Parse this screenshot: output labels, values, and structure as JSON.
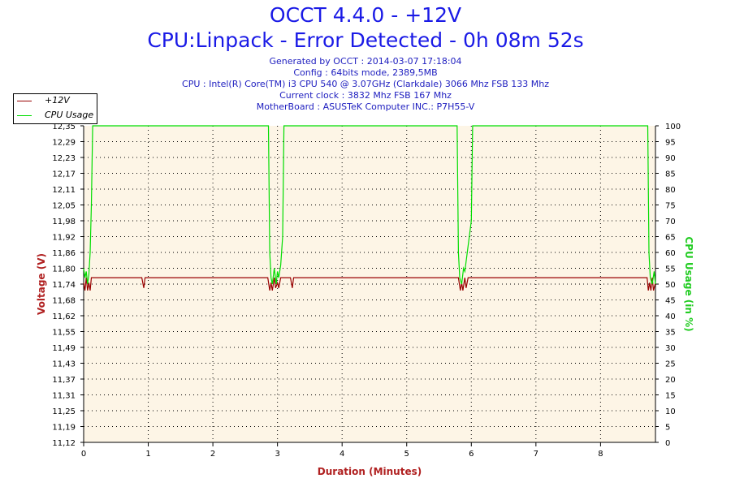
{
  "titles": {
    "line1": "OCCT 4.4.0 - +12V",
    "line2": "CPU:Linpack - Error Detected - 0h 08m 52s"
  },
  "info": {
    "generated": "Generated by OCCT : 2014-03-07 17:18:04",
    "config": "Config : 64bits mode, 2389,5MB",
    "cpu": "CPU : Intel(R) Core(TM) i3 CPU 540 @ 3.07GHz (Clarkdale) 3066 Mhz FSB 133 Mhz",
    "clock": "Current clock : 3832 Mhz FSB 167 Mhz",
    "motherboard": "MotherBoard : ASUSTeK Computer INC.: P7H55-V"
  },
  "legend": {
    "v12": "+12V",
    "cpu": "CPU Usage"
  },
  "colors": {
    "plot_bg": "#fdf5e6",
    "voltage": "#990000",
    "cpu": "#00dd00",
    "left_axis": "#b02020",
    "right_axis": "#22cc22",
    "x_axis_title": "#b02020"
  },
  "chart_data": {
    "type": "line",
    "xlabel": "Duration (Minutes)",
    "ylabel": "Voltage (V)",
    "y2label": "CPU Usage (in %)",
    "xlim": [
      0,
      8.85
    ],
    "ylim": [
      11.12,
      12.35
    ],
    "y2lim": [
      0,
      100
    ],
    "x_ticks": [
      "0",
      "1",
      "2",
      "3",
      "4",
      "5",
      "6",
      "7",
      "8"
    ],
    "y_ticks": [
      "12,35",
      "12,29",
      "12,23",
      "12,17",
      "12,11",
      "12,05",
      "11,98",
      "11,92",
      "11,86",
      "11,80",
      "11,74",
      "11,68",
      "11,62",
      "11,55",
      "11,49",
      "11,43",
      "11,37",
      "11,31",
      "11,25",
      "11,19",
      "11,12"
    ],
    "y2_ticks": [
      "100",
      "95",
      "90",
      "85",
      "80",
      "75",
      "70",
      "65",
      "60",
      "55",
      "50",
      "45",
      "40",
      "35",
      "30",
      "25",
      "20",
      "15",
      "10",
      "5",
      "0"
    ],
    "grid": true,
    "legend_position": "top-left",
    "series": [
      {
        "name": "+12V",
        "axis": "left",
        "x": [
          0,
          0.02,
          0.04,
          0.06,
          0.08,
          0.1,
          0.12,
          0.2,
          0.9,
          0.93,
          0.95,
          0.97,
          1.0,
          2.85,
          2.88,
          2.9,
          2.92,
          2.95,
          2.97,
          3.0,
          3.02,
          3.05,
          3.08,
          3.2,
          3.23,
          3.25,
          3.28,
          3.3,
          5.8,
          5.83,
          5.85,
          5.87,
          5.9,
          5.92,
          5.95,
          6.0,
          8.72,
          8.74,
          8.76,
          8.78,
          8.8,
          8.82,
          8.85
        ],
        "values": [
          11.74,
          11.71,
          11.76,
          11.71,
          11.74,
          11.71,
          11.76,
          11.76,
          11.76,
          11.72,
          11.76,
          11.76,
          11.76,
          11.76,
          11.71,
          11.74,
          11.71,
          11.76,
          11.72,
          11.74,
          11.72,
          11.76,
          11.76,
          11.76,
          11.72,
          11.76,
          11.76,
          11.76,
          11.76,
          11.71,
          11.74,
          11.71,
          11.76,
          11.72,
          11.76,
          11.76,
          11.76,
          11.71,
          11.74,
          11.71,
          11.76,
          11.71,
          11.74
        ]
      },
      {
        "name": "CPU Usage",
        "axis": "right",
        "x": [
          0,
          0.02,
          0.04,
          0.06,
          0.08,
          0.1,
          0.12,
          0.14,
          2.86,
          2.88,
          2.9,
          2.92,
          2.95,
          2.98,
          3.0,
          3.02,
          3.05,
          3.08,
          3.1,
          5.78,
          5.8,
          5.82,
          5.85,
          5.88,
          5.9,
          6.0,
          6.02,
          8.73,
          8.75,
          8.77,
          8.8,
          8.83,
          8.85
        ],
        "values": [
          55,
          52,
          54,
          50,
          53,
          60,
          75,
          100,
          100,
          60,
          52,
          50,
          55,
          50,
          54,
          52,
          56,
          65,
          100,
          100,
          60,
          52,
          50,
          55,
          54,
          70,
          100,
          100,
          60,
          52,
          50,
          54,
          50
        ]
      }
    ]
  }
}
